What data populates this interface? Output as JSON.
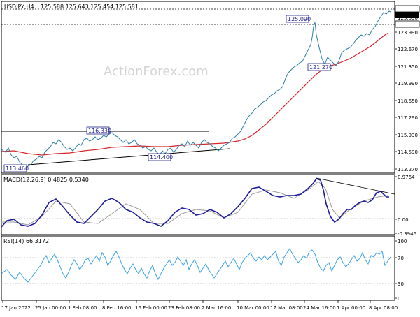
{
  "header": {
    "symbol": "USDJPY,H4",
    "ohlc": "125.588 125.643 125.454 125.581"
  },
  "watermark": "ActionForex.com",
  "colors": {
    "price": "#2f7fa8",
    "moving_average": "#d6252b",
    "trendline": "#000000",
    "macd": "#1c1c9c",
    "signal": "#9a9a9a",
    "rsi": "#3aa3e6",
    "annotation_text": "#1c1c8c"
  },
  "chart_data": [
    {
      "type": "line",
      "panel": "price",
      "title": "USDJPY,H4",
      "x": [
        "17 Jan 2022",
        "25 Jan 00:00",
        "1 Feb 08:00",
        "8 Feb 16:00",
        "16 Feb 00:00",
        "23 Feb 08:00",
        "2 Mar 16:00",
        "10 Mar 00:00",
        "17 Mar 08:00",
        "24 Mar 16:00",
        "1 Apr 00:00",
        "8 Apr 08:00"
      ],
      "series": [
        {
          "name": "USDJPY",
          "values": [
            114.6,
            113.7,
            115.3,
            116.1,
            115.3,
            114.9,
            115.4,
            117.1,
            119.3,
            122.3,
            122.4,
            124.9
          ]
        },
        {
          "name": "MA",
          "values": [
            115.3,
            114.9,
            115.1,
            115.4,
            115.6,
            115.4,
            115.2,
            115.8,
            117.2,
            119.6,
            121.2,
            123.3
          ]
        }
      ],
      "ylim": [
        113.27,
        125.85
      ],
      "yticks": [
        "125.850",
        "125.581",
        "125.090",
        "124.660",
        "123.990",
        "122.670",
        "121.350",
        "119.990",
        "118.650",
        "117.290",
        "115.930",
        "114.590",
        "113.270"
      ],
      "levels": [
        {
          "label": "125.090",
          "value": 125.09
        },
        {
          "label": "124.660",
          "value": 124.66,
          "style": "dotted"
        },
        {
          "label": "125.850",
          "value": 125.85,
          "style": "dotted"
        },
        {
          "label": "116.330",
          "value": 116.33
        },
        {
          "label": "114.400",
          "value": 114.4
        },
        {
          "label": "113.460",
          "value": 113.46
        },
        {
          "label": "121.270",
          "value": 121.27
        }
      ]
    },
    {
      "type": "line",
      "panel": "macd",
      "title": "MACD(12,26,9) 0.4825 0.5340",
      "yticks": [
        "0.9764",
        "0.00",
        "-0.3946"
      ],
      "ylim": [
        -0.3946,
        0.9764
      ],
      "series": [
        {
          "name": "MACD",
          "values": [
            -0.2,
            -0.1,
            0.35,
            -0.05,
            0.25,
            -0.1,
            0.15,
            -0.05,
            0.6,
            0.7,
            0.95,
            -0.15,
            0.3,
            0.5
          ]
        },
        {
          "name": "Signal",
          "values": [
            -0.15,
            -0.05,
            0.25,
            0.0,
            0.2,
            -0.05,
            0.1,
            0.0,
            0.5,
            0.65,
            0.85,
            0.0,
            0.25,
            0.53
          ]
        }
      ]
    },
    {
      "type": "line",
      "panel": "rsi",
      "title": "RSI(14) 66.3172",
      "yticks": [
        "100",
        "70",
        "30",
        "0"
      ],
      "ylim": [
        0,
        100
      ],
      "series": [
        {
          "name": "RSI",
          "values": [
            40,
            35,
            60,
            45,
            60,
            48,
            50,
            40,
            62,
            58,
            70,
            40,
            55,
            66
          ]
        }
      ]
    }
  ]
}
